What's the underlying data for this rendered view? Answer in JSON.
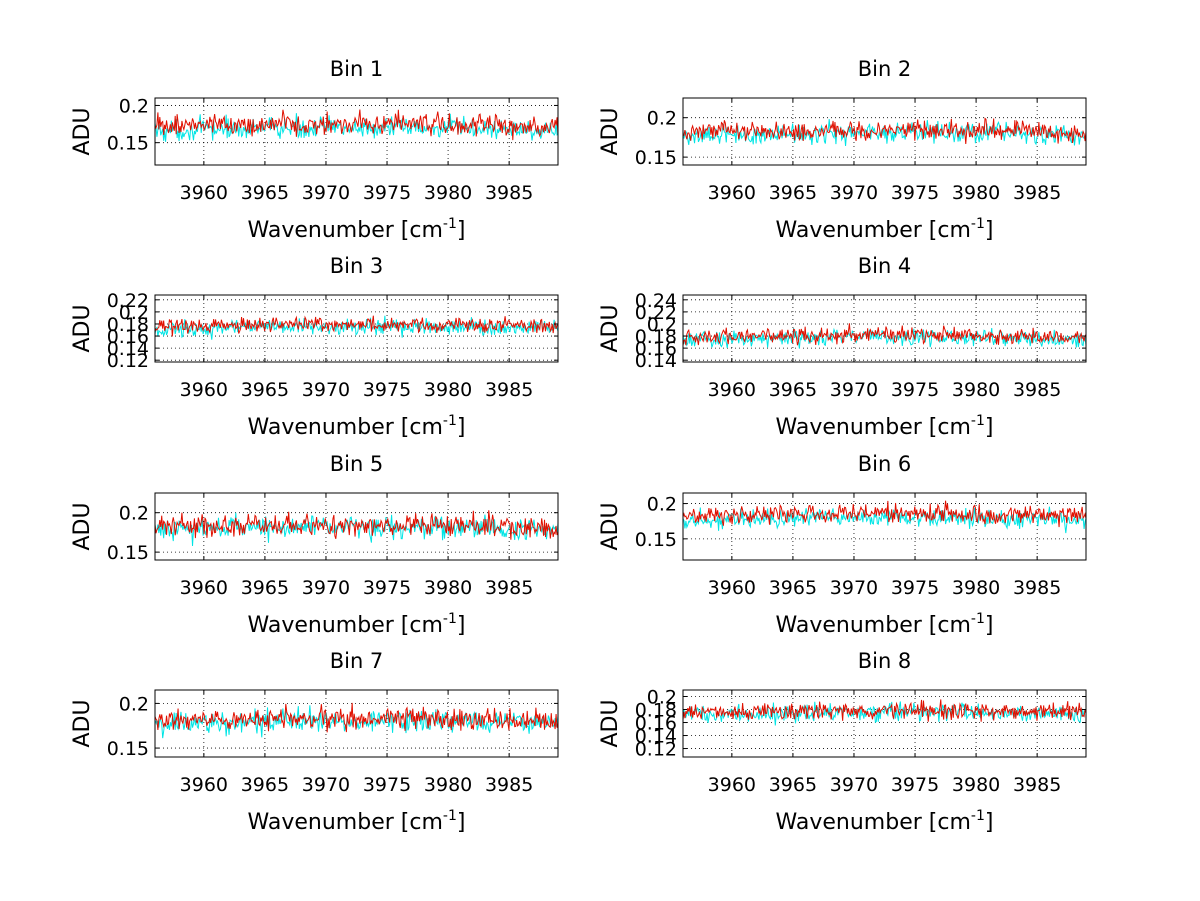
{
  "chart_data": {
    "type": "line",
    "layout": "4x2 subplots",
    "x_range": [
      3956,
      3989
    ],
    "x_ticks": [
      3960,
      3965,
      3970,
      3975,
      3980,
      3985
    ],
    "xlabel_main": "Wavenumber [cm",
    "xlabel_sup": "-1",
    "xlabel_close": "]",
    "ylabel": "ADU",
    "grid": "dotted",
    "series_colors": {
      "cyan": "#00e5e5",
      "red": "#e01000"
    },
    "subplots": [
      {
        "title": "Bin 1",
        "ylim": [
          0.12,
          0.21
        ],
        "yticks": [
          0.15,
          0.2
        ],
        "ytick_labels": [
          "0.15",
          "0.2"
        ],
        "cyan_mean": 0.166,
        "red_mean": 0.172,
        "noise": 0.013
      },
      {
        "title": "Bin 2",
        "ylim": [
          0.14,
          0.225
        ],
        "yticks": [
          0.15,
          0.2
        ],
        "ytick_labels": [
          "0.15",
          "0.2"
        ],
        "cyan_mean": 0.177,
        "red_mean": 0.181,
        "noise": 0.012
      },
      {
        "title": "Bin 3",
        "ylim": [
          0.117,
          0.228
        ],
        "yticks": [
          0.12,
          0.14,
          0.16,
          0.18,
          0.2,
          0.22
        ],
        "ytick_labels": [
          "0.12",
          "0.14",
          "0.16",
          "0.18",
          "0.2",
          "0.22"
        ],
        "cyan_mean": 0.172,
        "red_mean": 0.176,
        "noise": 0.012
      },
      {
        "title": "Bin 4",
        "ylim": [
          0.137,
          0.248
        ],
        "yticks": [
          0.14,
          0.16,
          0.18,
          0.2,
          0.22,
          0.24
        ],
        "ytick_labels": [
          "0.14",
          "0.16",
          "0.18",
          "0.2",
          "0.22",
          "0.24"
        ],
        "cyan_mean": 0.174,
        "red_mean": 0.178,
        "noise": 0.012
      },
      {
        "title": "Bin 5",
        "ylim": [
          0.14,
          0.225
        ],
        "yticks": [
          0.15,
          0.2
        ],
        "ytick_labels": [
          "0.15",
          "0.2"
        ],
        "cyan_mean": 0.178,
        "red_mean": 0.181,
        "noise": 0.013
      },
      {
        "title": "Bin 6",
        "ylim": [
          0.12,
          0.215
        ],
        "yticks": [
          0.15,
          0.2
        ],
        "ytick_labels": [
          "0.15",
          "0.2"
        ],
        "cyan_mean": 0.176,
        "red_mean": 0.182,
        "noise": 0.012
      },
      {
        "title": "Bin 7",
        "ylim": [
          0.14,
          0.215
        ],
        "yticks": [
          0.15,
          0.2
        ],
        "ytick_labels": [
          "0.15",
          "0.2"
        ],
        "cyan_mean": 0.177,
        "red_mean": 0.18,
        "noise": 0.012
      },
      {
        "title": "Bin 8",
        "ylim": [
          0.107,
          0.21
        ],
        "yticks": [
          0.12,
          0.14,
          0.16,
          0.18,
          0.2
        ],
        "ytick_labels": [
          "0.12",
          "0.14",
          "0.16",
          "0.18",
          "0.2"
        ],
        "cyan_mean": 0.172,
        "red_mean": 0.175,
        "noise": 0.012
      }
    ]
  }
}
